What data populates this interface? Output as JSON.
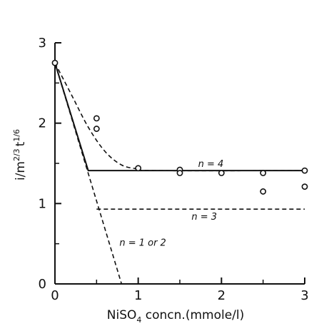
{
  "chart_data": {
    "type": "line",
    "xlabel": "NiSO4 concn.(mmole/l)",
    "ylabel": "i/m^2/3 t^1/6",
    "x_ticks": [
      "0",
      "1",
      "2",
      "3"
    ],
    "y_ticks": [
      "0",
      "1",
      "2",
      "3"
    ],
    "xlim": [
      0,
      3
    ],
    "ylim": [
      0,
      3
    ],
    "grid": false,
    "series": [
      {
        "name": "n = 4",
        "style": "solid",
        "points": [
          [
            0,
            2.75
          ],
          [
            0.4,
            1.41
          ],
          [
            3.0,
            1.41
          ]
        ]
      },
      {
        "name": "n = 3",
        "style": "dashed",
        "points": [
          [
            0.5,
            0.93
          ],
          [
            3.0,
            0.93
          ]
        ]
      },
      {
        "name": "n = 1 or 2",
        "style": "dashed",
        "points": [
          [
            0,
            2.75
          ],
          [
            0.8,
            0.0
          ]
        ]
      },
      {
        "name": "",
        "style": "dashed",
        "points": [
          [
            0,
            2.75
          ],
          [
            0.2,
            2.35
          ],
          [
            0.4,
            1.95
          ],
          [
            0.6,
            1.65
          ],
          [
            0.8,
            1.48
          ],
          [
            1.0,
            1.43
          ],
          [
            1.2,
            1.41
          ],
          [
            3.0,
            1.41
          ]
        ]
      }
    ],
    "observed_points": [
      [
        0,
        2.75
      ],
      [
        0.5,
        2.06
      ],
      [
        0.5,
        1.93
      ],
      [
        1.0,
        1.44
      ],
      [
        1.5,
        1.42
      ],
      [
        1.5,
        1.38
      ],
      [
        2.0,
        1.38
      ],
      [
        2.5,
        1.38
      ],
      [
        2.5,
        1.15
      ],
      [
        3.0,
        1.41
      ],
      [
        3.0,
        1.21
      ]
    ],
    "curve_labels": {
      "n4": "n = 4",
      "n3": "n = 3",
      "n12": "n = 1 or 2"
    },
    "axis_title_parts": {
      "x_main": "NiSO",
      "x_sub": "4",
      "x_rest": " concn.(mmole/l)",
      "y_i": "i/m",
      "y_exp1": "2/3",
      "y_t": "t",
      "y_exp2": "1/6"
    }
  }
}
